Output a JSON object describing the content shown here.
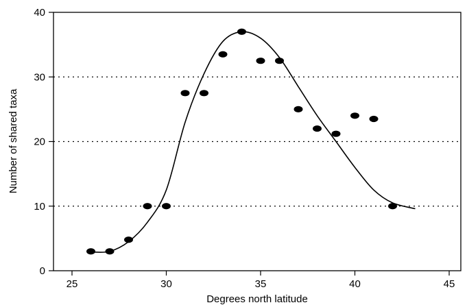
{
  "chart_data": {
    "type": "scatter",
    "title": "",
    "xlabel": "Degrees north latitude",
    "ylabel": "Number of shared taxa",
    "xlim": [
      24,
      46
    ],
    "ylim": [
      0,
      40
    ],
    "xticks": [
      25,
      30,
      35,
      40,
      45
    ],
    "yticks": [
      0,
      10,
      20,
      30,
      40
    ],
    "x_tick_labels": [
      "25",
      "30",
      "35",
      "40",
      "45"
    ],
    "y_tick_labels": [
      "0",
      "10",
      "20",
      "30",
      "40"
    ],
    "gridlines_y": [
      10,
      20,
      30
    ],
    "grid_style": "dotted horizontal",
    "colors": {
      "points": "#000000",
      "curve": "#000000",
      "grid": "#000000"
    },
    "series": [
      {
        "type": "scatter",
        "points": [
          {
            "x": 26,
            "y": 3.0
          },
          {
            "x": 27,
            "y": 3.0
          },
          {
            "x": 28,
            "y": 4.8
          },
          {
            "x": 29,
            "y": 10.0
          },
          {
            "x": 30,
            "y": 10.0
          },
          {
            "x": 31,
            "y": 27.5
          },
          {
            "x": 32,
            "y": 27.5
          },
          {
            "x": 33,
            "y": 33.5
          },
          {
            "x": 34,
            "y": 37.0
          },
          {
            "x": 35,
            "y": 32.5
          },
          {
            "x": 36,
            "y": 32.5
          },
          {
            "x": 37,
            "y": 25.0
          },
          {
            "x": 38,
            "y": 22.0
          },
          {
            "x": 39,
            "y": 21.2
          },
          {
            "x": 40,
            "y": 24.0
          },
          {
            "x": 41,
            "y": 23.5
          },
          {
            "x": 42,
            "y": 10.0
          }
        ]
      },
      {
        "type": "line",
        "smooth": true,
        "points": [
          {
            "x": 26,
            "y": 2.9
          },
          {
            "x": 27,
            "y": 3.0
          },
          {
            "x": 28,
            "y": 4.5
          },
          {
            "x": 29,
            "y": 7.5
          },
          {
            "x": 30,
            "y": 12.5
          },
          {
            "x": 31,
            "y": 23.0
          },
          {
            "x": 32,
            "y": 30.5
          },
          {
            "x": 33,
            "y": 35.5
          },
          {
            "x": 34,
            "y": 37.0
          },
          {
            "x": 35,
            "y": 36.0
          },
          {
            "x": 36,
            "y": 33.0
          },
          {
            "x": 37,
            "y": 28.5
          },
          {
            "x": 38,
            "y": 24.0
          },
          {
            "x": 39,
            "y": 20.0
          },
          {
            "x": 40,
            "y": 16.0
          },
          {
            "x": 41,
            "y": 12.5
          },
          {
            "x": 42,
            "y": 10.5
          },
          {
            "x": 43.2,
            "y": 9.6
          }
        ]
      }
    ]
  }
}
